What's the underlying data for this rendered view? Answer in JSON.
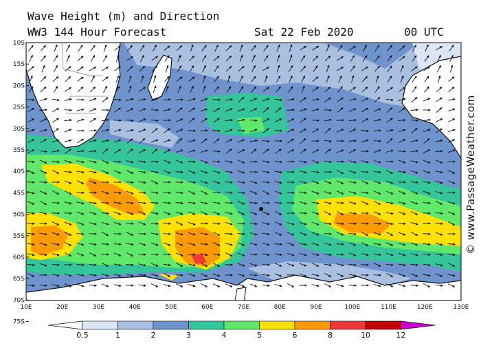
{
  "header": {
    "title_line1": "Wave Height (m) and Direction",
    "title_line2": "WW3 144 Hour Forecast",
    "date": "Sat 22 Feb 2020",
    "time": "00 UTC"
  },
  "credit": "© www.PassageWeather.com",
  "map": {
    "lat_labels": [
      "10S",
      "15S",
      "20S",
      "25S",
      "30S",
      "35S",
      "40S",
      "45S",
      "50S",
      "55S",
      "60S",
      "65S",
      "70S",
      "75S"
    ],
    "lon_labels": [
      "10E",
      "20E",
      "30E",
      "40E",
      "50E",
      "60E",
      "70E",
      "80E",
      "90E",
      "100E",
      "110E",
      "120E",
      "130E"
    ]
  },
  "legend": {
    "ticks": [
      "0.5",
      "1",
      "2",
      "3",
      "4",
      "5",
      "6",
      "8",
      "10",
      "12"
    ],
    "colors": [
      "#ffffff",
      "#dbe5f3",
      "#a9c0e1",
      "#6f93cc",
      "#34c59a",
      "#5fe86a",
      "#ffe100",
      "#ff9a00",
      "#ef3a3a",
      "#c00000",
      "#cc00cc"
    ]
  }
}
